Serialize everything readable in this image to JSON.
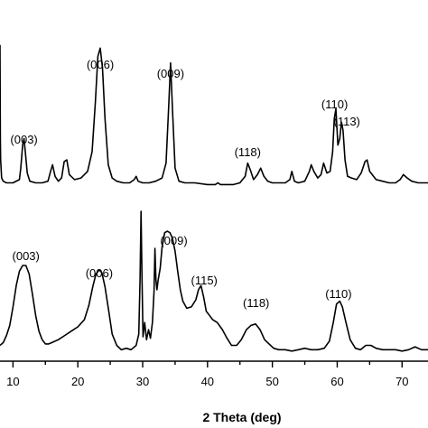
{
  "chart_data": {
    "type": "line",
    "title": "",
    "xlabel": "2 Theta (deg)",
    "ylabel": "",
    "xlim": [
      8,
      74
    ],
    "xticks": [
      10,
      20,
      30,
      40,
      50,
      60,
      70
    ],
    "grid": false,
    "legend": "none",
    "line_color": "#000000",
    "series": [
      {
        "values_note": "upper pattern, relative intensity (0-1)",
        "x": [
          8,
          8.05,
          8.1,
          8.25,
          8.5,
          9,
          10,
          11,
          11.2,
          11.5,
          11.7,
          11.9,
          12.2,
          12.6,
          13.5,
          14.5,
          15.4,
          15.8,
          16.1,
          16.5,
          17,
          17.5,
          17.9,
          18.3,
          18.7,
          19.5,
          20.5,
          21.5,
          22.2,
          22.7,
          23.1,
          23.45,
          23.8,
          24.2,
          24.7,
          25.3,
          26,
          27,
          28,
          28.7,
          29,
          29.3,
          30,
          31,
          32,
          33,
          33.6,
          34,
          34.3,
          34.6,
          35,
          35.6,
          36.5,
          38,
          40,
          41.2,
          41.6,
          42,
          43,
          44,
          45,
          45.8,
          46.2,
          46.6,
          47.1,
          47.7,
          48.2,
          48.7,
          49.3,
          50,
          51,
          52,
          52.7,
          53,
          53.4,
          54,
          55,
          55.7,
          56,
          56.4,
          57,
          57.5,
          57.9,
          58.4,
          58.9,
          59.3,
          59.55,
          59.8,
          60.1,
          60.4,
          60.65,
          60.9,
          61.2,
          61.6,
          62.2,
          63,
          63.7,
          64.3,
          64.6,
          65,
          66,
          67,
          68,
          69,
          69.7,
          70.2,
          70.8,
          71.5,
          72.5,
          73.5,
          74
        ],
        "values": [
          0.87,
          0.3,
          0.17,
          0.06,
          0.04,
          0.03,
          0.03,
          0.05,
          0.12,
          0.26,
          0.3,
          0.22,
          0.09,
          0.04,
          0.03,
          0.03,
          0.04,
          0.1,
          0.14,
          0.07,
          0.04,
          0.06,
          0.16,
          0.17,
          0.08,
          0.05,
          0.06,
          0.1,
          0.22,
          0.52,
          0.8,
          0.85,
          0.73,
          0.42,
          0.14,
          0.06,
          0.04,
          0.03,
          0.03,
          0.05,
          0.07,
          0.04,
          0.03,
          0.03,
          0.04,
          0.06,
          0.15,
          0.48,
          0.76,
          0.48,
          0.12,
          0.04,
          0.03,
          0.03,
          0.02,
          0.02,
          0.03,
          0.02,
          0.02,
          0.02,
          0.03,
          0.07,
          0.15,
          0.11,
          0.05,
          0.08,
          0.12,
          0.07,
          0.04,
          0.03,
          0.03,
          0.03,
          0.05,
          0.1,
          0.04,
          0.03,
          0.04,
          0.1,
          0.14,
          0.1,
          0.06,
          0.08,
          0.15,
          0.09,
          0.1,
          0.22,
          0.42,
          0.48,
          0.26,
          0.3,
          0.4,
          0.35,
          0.17,
          0.07,
          0.06,
          0.05,
          0.09,
          0.16,
          0.17,
          0.1,
          0.05,
          0.04,
          0.03,
          0.03,
          0.05,
          0.08,
          0.06,
          0.04,
          0.03,
          0.03,
          0.03
        ]
      },
      {
        "values_note": "lower pattern, relative intensity (0-1)",
        "x": [
          8,
          8.5,
          9,
          9.5,
          10,
          10.5,
          11,
          11.5,
          12,
          12.5,
          13,
          13.5,
          14,
          14.5,
          15,
          15.5,
          16,
          17,
          18,
          19,
          20,
          21,
          21.7,
          22.3,
          22.8,
          23.3,
          23.7,
          24.2,
          24.8,
          25.3,
          26,
          26.7,
          27.5,
          28.2,
          29,
          29.4,
          29.6,
          29.75,
          29.9,
          30.05,
          30.3,
          30.6,
          30.9,
          31.2,
          31.5,
          31.75,
          31.9,
          32.05,
          32.2,
          32.4,
          32.7,
          33,
          33.4,
          33.8,
          34.2,
          34.6,
          35,
          35.4,
          35.8,
          36.2,
          36.8,
          37.5,
          38.2,
          38.6,
          39,
          39.4,
          39.8,
          40.3,
          40.8,
          41.5,
          42.3,
          43,
          43.7,
          44.5,
          45.2,
          46,
          46.7,
          47.4,
          48.1,
          48.8,
          49.5,
          50.2,
          51,
          52,
          53,
          54,
          55,
          56,
          57,
          58,
          58.8,
          59.4,
          59.9,
          60.4,
          60.8,
          61.3,
          62,
          62.8,
          63.6,
          64.4,
          65.2,
          66,
          67,
          68,
          69,
          70,
          71,
          72,
          73,
          74
        ],
        "values": [
          0.06,
          0.08,
          0.13,
          0.2,
          0.33,
          0.48,
          0.58,
          0.62,
          0.62,
          0.56,
          0.42,
          0.27,
          0.16,
          0.1,
          0.07,
          0.07,
          0.08,
          0.1,
          0.13,
          0.16,
          0.19,
          0.24,
          0.34,
          0.47,
          0.56,
          0.59,
          0.57,
          0.47,
          0.29,
          0.14,
          0.06,
          0.03,
          0.04,
          0.03,
          0.06,
          0.14,
          0.52,
          1.0,
          0.52,
          0.12,
          0.22,
          0.1,
          0.17,
          0.11,
          0.22,
          0.44,
          0.74,
          0.52,
          0.45,
          0.52,
          0.6,
          0.75,
          0.85,
          0.86,
          0.85,
          0.81,
          0.72,
          0.58,
          0.45,
          0.37,
          0.32,
          0.33,
          0.38,
          0.45,
          0.48,
          0.4,
          0.3,
          0.27,
          0.24,
          0.22,
          0.17,
          0.11,
          0.06,
          0.06,
          0.1,
          0.17,
          0.2,
          0.21,
          0.17,
          0.1,
          0.07,
          0.04,
          0.03,
          0.03,
          0.02,
          0.03,
          0.04,
          0.03,
          0.03,
          0.04,
          0.09,
          0.22,
          0.35,
          0.37,
          0.33,
          0.23,
          0.1,
          0.04,
          0.03,
          0.06,
          0.06,
          0.04,
          0.03,
          0.03,
          0.03,
          0.02,
          0.03,
          0.05,
          0.03,
          0.03
        ]
      }
    ],
    "annotations_top": [
      {
        "text": "(003)",
        "x": 11.7
      },
      {
        "text": "(006)",
        "x": 23.45
      },
      {
        "text": "(009)",
        "x": 34.3
      },
      {
        "text": "(118)",
        "x": 46.2
      },
      {
        "text": "(110)",
        "x": 59.6
      },
      {
        "text": "(113)",
        "x": 61.5
      }
    ],
    "annotations_bottom": [
      {
        "text": "(003)",
        "x": 12.0
      },
      {
        "text": "(006)",
        "x": 23.3
      },
      {
        "text": "(009)",
        "x": 34.8
      },
      {
        "text": "(115)",
        "x": 39.5
      },
      {
        "text": "(118)",
        "x": 47.5
      },
      {
        "text": "(110)",
        "x": 60.2
      }
    ]
  }
}
